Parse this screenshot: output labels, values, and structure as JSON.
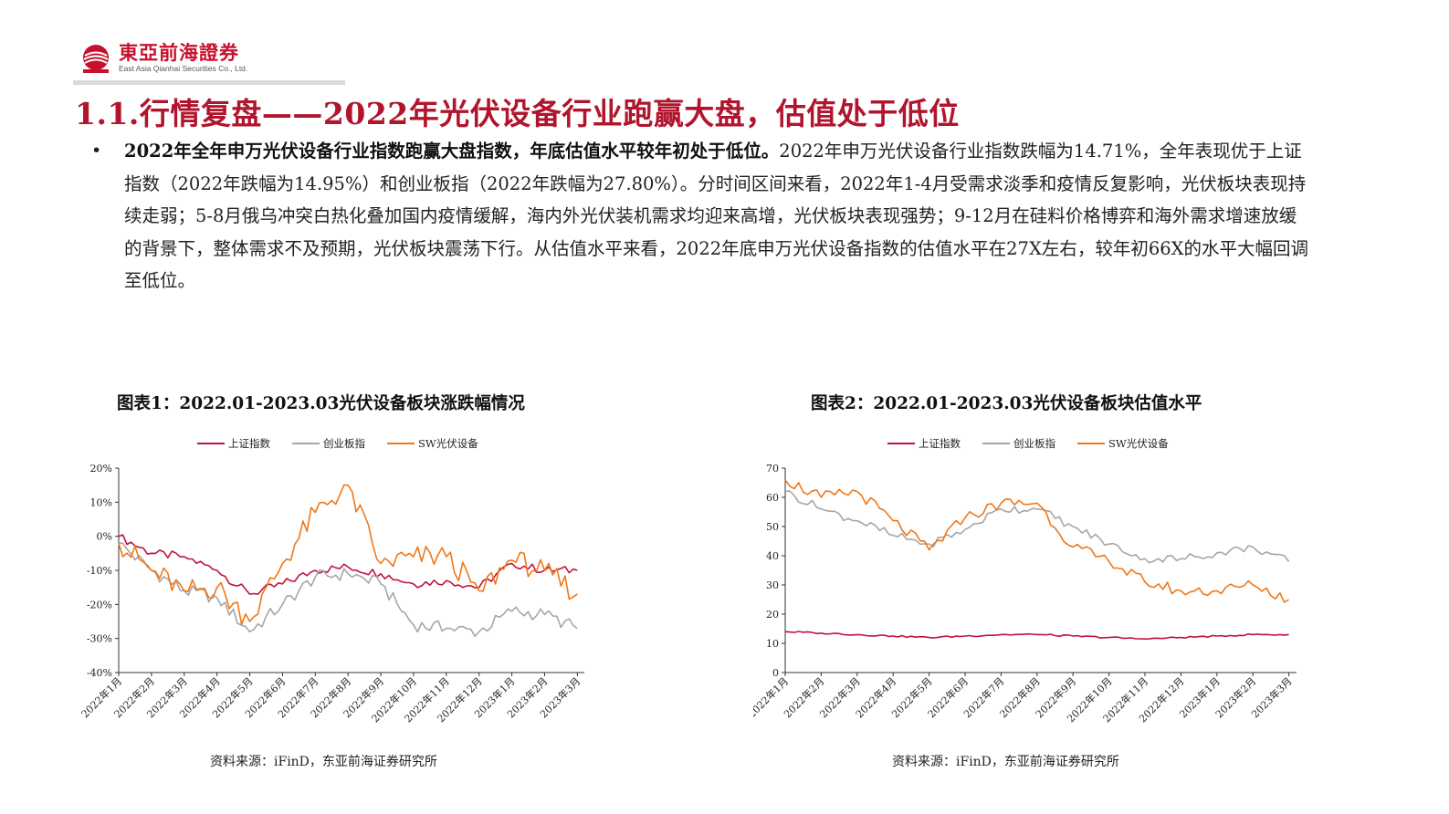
{
  "header": {
    "logo_cn": "東亞前海證券",
    "logo_en": "East Asia Qianhai Securities Co., Ltd.",
    "brand_color": "#c8102e"
  },
  "title": "1.1.行情复盘——2022年光伏设备行业跑赢大盘，估值处于低位",
  "bullet": {
    "bold": "2022年全年申万光伏设备行业指数跑赢大盘指数，年底估值水平较年初处于低位。",
    "text": "2022年申万光伏设备行业指数跌幅为14.71%，全年表现优于上证指数（2022年跌幅为14.95%）和创业板指（2022年跌幅为27.80%）。分时间区间来看，2022年1-4月受需求淡季和疫情反复影响，光伏板块表现持续走弱；5-8月俄乌冲突白热化叠加国内疫情缓解，海内外光伏装机需求均迎来高增，光伏板块表现强势；9-12月在硅料价格博弈和海外需求增速放缓的背景下，整体需求不及预期，光伏板块震荡下行。从估值水平来看，2022年底申万光伏设备指数的估值水平在27X左右，较年初66X的水平大幅回调至低位。"
  },
  "chart_data": [
    {
      "type": "line",
      "title": "图表1：2022.01-2023.03光伏设备板块涨跌幅情况",
      "source": "资料来源：iFinD，东亚前海证券研究所",
      "x": [
        "2022年1月",
        "2022年2月",
        "2022年3月",
        "2022年4月",
        "2022年5月",
        "2022年6月",
        "2022年7月",
        "2022年8月",
        "2022年9月",
        "2022年10月",
        "2022年11月",
        "2022年12月",
        "2023年1月",
        "2023年2月",
        "2023年3月"
      ],
      "yticks": [
        "20%",
        "10%",
        "0%",
        "-10%",
        "-20%",
        "-30%",
        "-40%"
      ],
      "ylim": [
        -40,
        20
      ],
      "legend": "top",
      "series": [
        {
          "name": "上证指数",
          "color": "#c0143c",
          "values": [
            0,
            -5,
            -6,
            -10,
            -17,
            -14,
            -10,
            -9,
            -11,
            -14,
            -13,
            -15,
            -8,
            -10,
            -10
          ]
        },
        {
          "name": "创业板指",
          "color": "#a6a6a6",
          "values": [
            -2,
            -10,
            -16,
            -18,
            -28,
            -20,
            -12,
            -11,
            -14,
            -26,
            -27,
            -28,
            -22,
            -23,
            -27
          ]
        },
        {
          "name": "SW光伏设备",
          "color": "#f07818",
          "values": [
            -2,
            -10,
            -16,
            -15,
            -25,
            -8,
            7,
            15,
            -8,
            -6,
            -6,
            -16,
            -7,
            -10,
            -17
          ]
        }
      ]
    },
    {
      "type": "line",
      "title": "图表2：2022.01-2023.03光伏设备板块估值水平",
      "source": "资料来源：iFinD，东亚前海证券研究所",
      "x": [
        "2022年1月",
        "2022年2月",
        "2022年3月",
        "2022年4月",
        "2022年5月",
        "2022年6月",
        "2022年7月",
        "2022年8月",
        "2022年9月",
        "2022年10月",
        "2022年11月",
        "2022年12月",
        "2023年1月",
        "2023年2月",
        "2023年3月"
      ],
      "yticks": [
        "70",
        "60",
        "50",
        "40",
        "30",
        "20",
        "10",
        "0"
      ],
      "ylim": [
        0,
        70
      ],
      "legend": "top",
      "series": [
        {
          "name": "上证指数",
          "color": "#c0143c",
          "values": [
            14,
            13.5,
            13,
            12.5,
            12,
            12.5,
            13,
            13,
            12.5,
            12,
            11.5,
            12,
            12.5,
            13,
            13
          ]
        },
        {
          "name": "创业板指",
          "color": "#a6a6a6",
          "values": [
            62,
            56,
            52,
            47,
            44,
            49,
            56,
            56,
            50,
            44,
            39,
            39,
            41,
            43,
            38
          ]
        },
        {
          "name": "SW光伏设备",
          "color": "#f07818",
          "values": [
            66,
            60,
            62,
            52,
            42,
            53,
            58,
            58,
            43,
            38,
            31,
            28,
            28,
            30,
            25
          ]
        }
      ]
    }
  ]
}
